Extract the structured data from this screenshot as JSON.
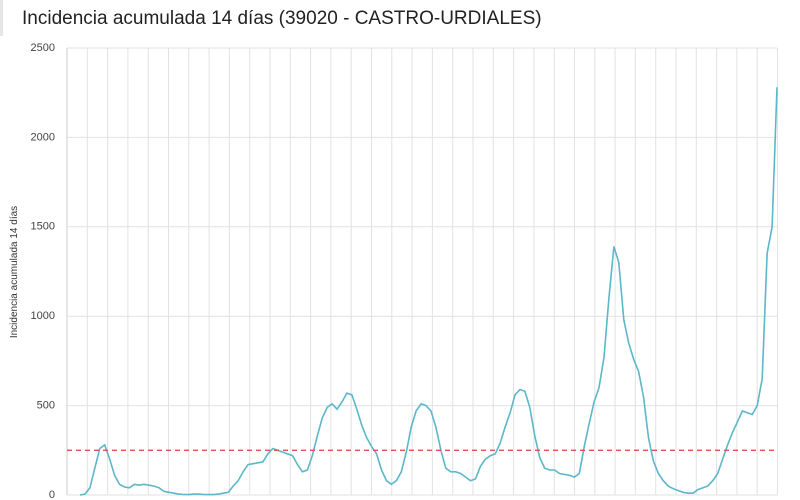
{
  "chart_data": {
    "type": "line",
    "title": "Incidencia acumulada 14 días (39020 - CASTRO-URDIALES)",
    "y_label": "Incidencia acumulada 14 días",
    "ylim": [
      0,
      2500
    ],
    "yticks": [
      0,
      500,
      1000,
      1500,
      2000,
      2500
    ],
    "grid": true,
    "reference_line": {
      "value": 250,
      "color": "#d9534f"
    },
    "series": [
      {
        "color": "#5bb7c9",
        "values": [
          0,
          5,
          40,
          150,
          260,
          280,
          200,
          110,
          60,
          45,
          40,
          60,
          55,
          60,
          55,
          50,
          40,
          20,
          15,
          10,
          5,
          3,
          2,
          5,
          5,
          3,
          2,
          2,
          5,
          10,
          15,
          50,
          80,
          130,
          170,
          175,
          180,
          185,
          230,
          260,
          250,
          240,
          230,
          220,
          170,
          130,
          140,
          220,
          330,
          430,
          490,
          510,
          480,
          520,
          570,
          560,
          480,
          390,
          320,
          270,
          230,
          140,
          80,
          60,
          80,
          130,
          240,
          380,
          470,
          510,
          500,
          470,
          380,
          250,
          150,
          130,
          130,
          120,
          100,
          80,
          90,
          160,
          200,
          220,
          230,
          290,
          380,
          460,
          560,
          590,
          580,
          490,
          330,
          210,
          150,
          140,
          140,
          120,
          115,
          110,
          100,
          120,
          270,
          400,
          520,
          600,
          770,
          1100,
          1390,
          1300,
          980,
          850,
          760,
          690,
          550,
          320,
          190,
          120,
          80,
          50,
          35,
          25,
          15,
          10,
          10,
          30,
          40,
          50,
          80,
          120,
          200,
          280,
          350,
          410,
          470,
          460,
          450,
          500,
          650,
          1350,
          1500,
          2280
        ]
      }
    ]
  }
}
